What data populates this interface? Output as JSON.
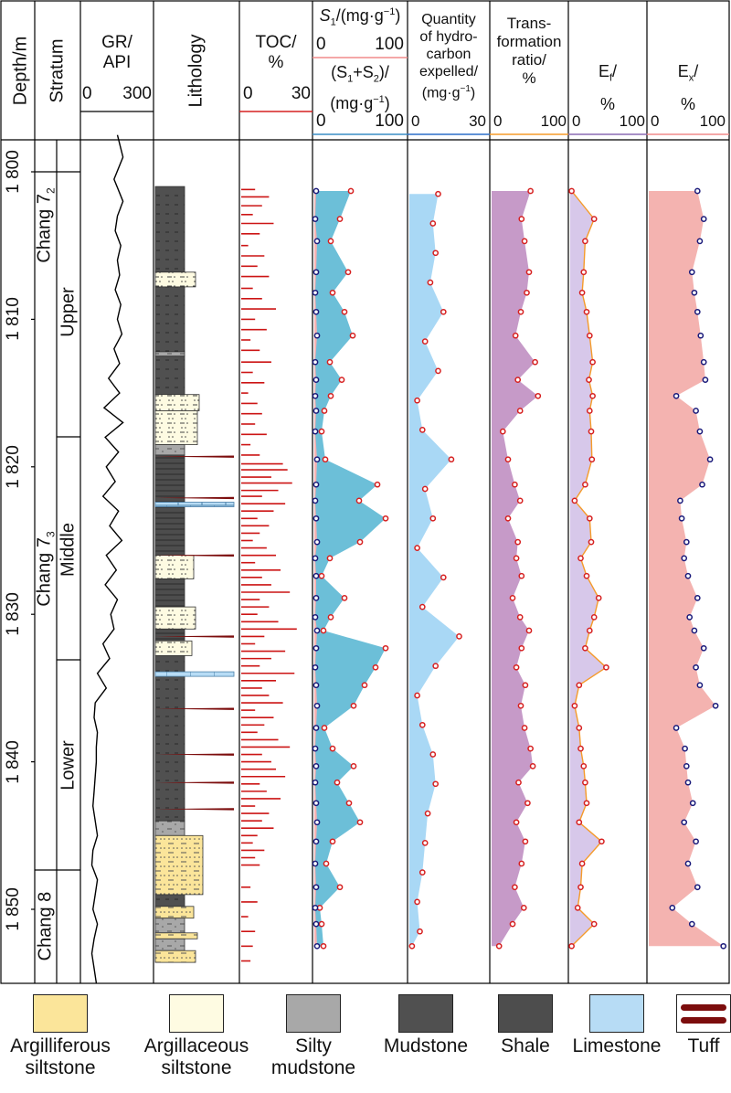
{
  "columns": {
    "depth": "Depth/m",
    "stratum": "Stratum",
    "gr": {
      "title": "GR/",
      "unit": "API",
      "min": "0",
      "max": "300"
    },
    "lithology": "Lithology",
    "toc": {
      "title": "TOC/",
      "unit": "%",
      "min": "0",
      "max": "30"
    },
    "s1": {
      "title": "S",
      "sub": "1",
      "unit": "/(mg·g",
      "sup": "−1",
      "close": ")",
      "min": "0",
      "max": "100"
    },
    "s1s2": {
      "title": "(S",
      "sub1": "1",
      "plus": "+S",
      "sub2": "2",
      "close": ")/",
      "unit": "(mg·g",
      "sup": "−1",
      "close2": ")",
      "min": "0",
      "max": "100"
    },
    "hc": {
      "line1": "Quantity",
      "line2": "of hydro-",
      "line3": "carbon",
      "line4": "expelled/",
      "unit": "(mg·g",
      "sup": "−1",
      "close": ")",
      "min": "0",
      "max": "30"
    },
    "tr": {
      "line1": "Trans-",
      "line2": "formation",
      "line3": "ratio/",
      "line4": "%",
      "min": "0",
      "max": "100"
    },
    "ef": {
      "title": "E",
      "sub": "f",
      "slash": "/",
      "unit": "%",
      "min": "0",
      "max": "100"
    },
    "ex": {
      "title": "E",
      "sub": "x",
      "slash": "/",
      "unit": "%",
      "min": "0",
      "max": "100"
    }
  },
  "strata": {
    "chang72": "Chang 7",
    "chang72_sub": "2",
    "chang73": "Chang 7",
    "chang73_sub": "3",
    "chang8": "Chang 8",
    "upper": "Upper",
    "middle": "Middle",
    "lower": "Lower"
  },
  "depth_labels": [
    "1 800",
    "1 810",
    "1 820",
    "1 830",
    "1 840",
    "1 850"
  ],
  "legend": [
    {
      "name": "Argilliferous siltstone",
      "line1": "Argilliferous",
      "line2": "siltstone"
    },
    {
      "name": "Argillaceous siltstone",
      "line1": "Argillaceous",
      "line2": "siltstone"
    },
    {
      "name": "Silty mudstone",
      "line1": "Silty",
      "line2": "mudstone"
    },
    {
      "name": "Mudstone",
      "line1": "Mudstone",
      "line2": ""
    },
    {
      "name": "Shale",
      "line1": "Shale",
      "line2": ""
    },
    {
      "name": "Limestone",
      "line1": "Limestone",
      "line2": ""
    },
    {
      "name": "Tuff",
      "line1": "Tuff",
      "line2": ""
    }
  ],
  "colors": {
    "s1_fill": "#f6b3b3",
    "s1s2_fill": "#6cbfd8",
    "hc_fill": "#a9d8f5",
    "tr_fill": "#c69ac8",
    "ef_fill": "#d7c8ea",
    "ef_line": "#f59b2a",
    "ex_fill": "#f4b3b0",
    "red_marker": "#d62020",
    "blue_marker": "#1a1a7a",
    "toc_bar": "#cc1414",
    "mudstone": "#505050",
    "silty_mudstone": "#a8a8a8",
    "argillaceous": "#fefbe2",
    "argilliferous": "#fbe59a",
    "limestone": "#b7dcf5",
    "tuff": "#7c0d0d"
  },
  "chart_data": {
    "type": "well-log",
    "depth_range": [
      1797,
      1855
    ],
    "depth_axis_ticks": [
      1800,
      1810,
      1820,
      1830,
      1840,
      1850
    ],
    "gr_curve": {
      "depth": [
        1797.5,
        1799,
        1800.5,
        1802,
        1803,
        1804,
        1805,
        1806,
        1807,
        1808,
        1809,
        1810,
        1811,
        1812,
        1813,
        1814,
        1815,
        1816,
        1817,
        1818,
        1819,
        1820,
        1821,
        1822,
        1823,
        1824,
        1825,
        1826,
        1827,
        1828,
        1829,
        1830,
        1831,
        1832,
        1833,
        1834,
        1835,
        1836,
        1837,
        1838,
        1839,
        1840,
        1841,
        1842,
        1843,
        1844,
        1845,
        1846,
        1847,
        1848,
        1849,
        1850,
        1851,
        1852,
        1853,
        1854,
        1855
      ],
      "api": [
        150,
        175,
        135,
        175,
        150,
        140,
        165,
        150,
        160,
        140,
        165,
        150,
        170,
        135,
        160,
        110,
        160,
        90,
        175,
        95,
        155,
        100,
        140,
        85,
        155,
        115,
        170,
        100,
        145,
        95,
        150,
        120,
        135,
        85,
        115,
        60,
        100,
        50,
        45,
        60,
        55,
        55,
        50,
        45,
        40,
        50,
        60,
        40,
        35,
        60,
        50,
        40,
        60,
        45,
        35,
        45,
        55
      ]
    },
    "toc_samples": {
      "depth": [
        1801.2,
        1801.7,
        1802.3,
        1802.9,
        1803.5,
        1804.2,
        1805.0,
        1805.7,
        1806.4,
        1807.1,
        1807.9,
        1808.6,
        1809.3,
        1810.0,
        1810.7,
        1811.4,
        1812.1,
        1812.9,
        1813.6,
        1814.3,
        1815.0,
        1815.7,
        1816.4,
        1817.1,
        1817.8,
        1818.5,
        1819.2,
        1819.8,
        1820.2,
        1820.7,
        1821.1,
        1821.6,
        1822.0,
        1822.5,
        1823.0,
        1823.5,
        1824.0,
        1824.5,
        1825.0,
        1825.5,
        1826.0,
        1826.5,
        1827.0,
        1827.5,
        1828.0,
        1828.5,
        1829.0,
        1829.5,
        1830.0,
        1830.5,
        1831.0,
        1831.5,
        1832.0,
        1832.5,
        1833.0,
        1833.5,
        1834.0,
        1834.5,
        1835.0,
        1835.5,
        1836.0,
        1836.5,
        1837.0,
        1837.5,
        1838.0,
        1838.5,
        1839.0,
        1839.5,
        1840.0,
        1840.5,
        1841.0,
        1841.5,
        1842.0,
        1842.5,
        1843.0,
        1843.5,
        1844.0,
        1844.5,
        1845.0,
        1845.5,
        1846.0,
        1846.5,
        1847.0,
        1848.5,
        1849.5,
        1850.5,
        1851.5,
        1852.5,
        1853.5
      ],
      "toc": [
        6,
        12,
        9,
        5,
        14,
        8,
        3,
        10,
        7,
        12,
        5,
        9,
        15,
        6,
        11,
        4,
        8,
        13,
        5,
        10,
        3,
        7,
        9,
        6,
        11,
        4,
        8,
        18,
        20,
        13,
        22,
        16,
        9,
        19,
        14,
        7,
        12,
        8,
        5,
        11,
        15,
        6,
        17,
        9,
        13,
        21,
        8,
        12,
        7,
        16,
        24,
        10,
        6,
        19,
        13,
        8,
        23,
        15,
        9,
        12,
        18,
        6,
        14,
        10,
        7,
        16,
        21,
        9,
        13,
        15,
        19,
        8,
        11,
        17,
        6,
        12,
        9,
        14,
        7,
        5,
        10,
        6,
        8,
        4,
        7,
        3,
        6,
        5,
        4
      ]
    },
    "tuff_layers": [
      1819.3,
      1822.1,
      1826.0,
      1831.5,
      1836.4,
      1839.5,
      1841.4,
      1843.2
    ],
    "s1": {
      "depth": [
        1801.3,
        1803.2,
        1804.7,
        1806.8,
        1808.2,
        1809.5,
        1811.1,
        1812.9,
        1814.1,
        1815.2,
        1816.2,
        1817.6,
        1819.5,
        1821.2,
        1822.3,
        1823.5,
        1825.1,
        1826.2,
        1827.4,
        1828.9,
        1830.2,
        1831.1,
        1832.3,
        1833.6,
        1834.8,
        1836.2,
        1837.7,
        1839.1,
        1840.3,
        1841.4,
        1842.8,
        1844.1,
        1845.4,
        1846.9,
        1848.5,
        1849.9,
        1851.0,
        1852.5
      ],
      "value": [
        2,
        1,
        3,
        2,
        1,
        2,
        3,
        1,
        2,
        1,
        2,
        1,
        3,
        2,
        1,
        2,
        3,
        1,
        2,
        2,
        1,
        3,
        2,
        1,
        2,
        3,
        2,
        1,
        2,
        1,
        2,
        3,
        2,
        1,
        2,
        1,
        2,
        3
      ]
    },
    "s1s2": {
      "depth": [
        1801.3,
        1803.2,
        1804.7,
        1806.8,
        1808.2,
        1809.5,
        1811.1,
        1812.9,
        1814.1,
        1815.2,
        1816.2,
        1817.6,
        1819.5,
        1821.2,
        1822.3,
        1823.5,
        1825.1,
        1826.2,
        1827.4,
        1828.9,
        1830.2,
        1831.1,
        1832.3,
        1833.6,
        1834.8,
        1836.2,
        1837.7,
        1839.1,
        1840.3,
        1841.4,
        1842.8,
        1844.1,
        1845.4,
        1846.9,
        1848.5,
        1849.9,
        1851.0,
        1852.5
      ],
      "value": [
        40,
        28,
        18,
        37,
        20,
        33,
        42,
        17,
        30,
        18,
        11,
        8,
        12,
        69,
        49,
        78,
        50,
        17,
        8,
        33,
        18,
        10,
        78,
        67,
        55,
        43,
        11,
        20,
        43,
        25,
        38,
        50,
        20,
        13,
        28,
        6,
        8,
        10
      ]
    },
    "hc_expelled": {
      "depth": [
        1801.5,
        1803.5,
        1805.5,
        1807.5,
        1809.5,
        1811.5,
        1813.5,
        1815.5,
        1817.5,
        1819.5,
        1821.5,
        1823.5,
        1825.5,
        1827.5,
        1829.5,
        1831.5,
        1833.5,
        1835.5,
        1837.5,
        1839.5,
        1841.5,
        1843.5,
        1845.5,
        1847.5,
        1849.5,
        1851.5,
        1852.5
      ],
      "value": [
        11,
        9,
        10,
        8,
        13,
        6,
        11,
        3,
        5,
        16,
        6,
        9,
        3,
        13,
        5,
        19,
        10,
        3,
        5,
        9,
        10,
        7,
        6,
        5,
        3,
        4,
        1
      ]
    },
    "transformation_ratio": {
      "depth": [
        1801.3,
        1803.2,
        1804.7,
        1806.8,
        1808.2,
        1809.5,
        1811.1,
        1812.9,
        1814.1,
        1815.2,
        1816.2,
        1817.6,
        1819.5,
        1821.2,
        1822.3,
        1823.5,
        1825.1,
        1826.2,
        1827.4,
        1828.9,
        1830.2,
        1831.1,
        1832.3,
        1833.6,
        1834.8,
        1836.2,
        1837.7,
        1839.1,
        1840.3,
        1841.4,
        1842.8,
        1844.1,
        1845.4,
        1846.9,
        1848.5,
        1849.9,
        1851.0,
        1852.5
      ],
      "value": [
        52,
        40,
        44,
        50,
        47,
        39,
        32,
        58,
        35,
        62,
        38,
        15,
        22,
        31,
        38,
        22,
        35,
        33,
        40,
        28,
        38,
        50,
        40,
        33,
        45,
        39,
        44,
        52,
        55,
        36,
        48,
        33,
        45,
        40,
        31,
        43,
        28,
        10
      ]
    },
    "ef": {
      "depth": [
        1801.3,
        1803.2,
        1804.7,
        1806.8,
        1808.2,
        1809.5,
        1811.1,
        1812.9,
        1814.1,
        1815.2,
        1816.2,
        1817.6,
        1819.5,
        1821.2,
        1822.3,
        1823.5,
        1825.1,
        1826.2,
        1827.4,
        1828.9,
        1830.2,
        1831.1,
        1832.3,
        1833.6,
        1834.8,
        1836.2,
        1837.7,
        1839.1,
        1840.3,
        1841.4,
        1842.8,
        1844.1,
        1845.4,
        1846.9,
        1848.5,
        1849.9,
        1851.0,
        1852.5
      ],
      "value": [
        2,
        32,
        20,
        18,
        16,
        22,
        26,
        30,
        25,
        30,
        26,
        28,
        29,
        20,
        6,
        26,
        28,
        14,
        22,
        38,
        32,
        26,
        20,
        48,
        12,
        6,
        12,
        14,
        18,
        20,
        22,
        12,
        42,
        16,
        14,
        10,
        32,
        2
      ]
    },
    "ex": {
      "depth": [
        1801.3,
        1803.2,
        1804.7,
        1806.8,
        1808.2,
        1809.5,
        1811.1,
        1812.9,
        1814.1,
        1815.2,
        1816.2,
        1817.6,
        1819.5,
        1821.2,
        1822.3,
        1823.5,
        1825.1,
        1826.2,
        1827.4,
        1828.9,
        1830.2,
        1831.1,
        1832.3,
        1833.6,
        1834.8,
        1836.2,
        1837.7,
        1839.1,
        1840.3,
        1841.4,
        1842.8,
        1844.1,
        1845.4,
        1846.9,
        1848.5,
        1849.9,
        1851.0,
        1852.5
      ],
      "value": [
        62,
        70,
        65,
        55,
        58,
        62,
        66,
        70,
        72,
        35,
        60,
        65,
        78,
        68,
        40,
        42,
        48,
        45,
        50,
        62,
        52,
        58,
        70,
        60,
        65,
        85,
        35,
        46,
        48,
        50,
        56,
        45,
        60,
        50,
        62,
        30,
        55,
        95
      ]
    }
  }
}
